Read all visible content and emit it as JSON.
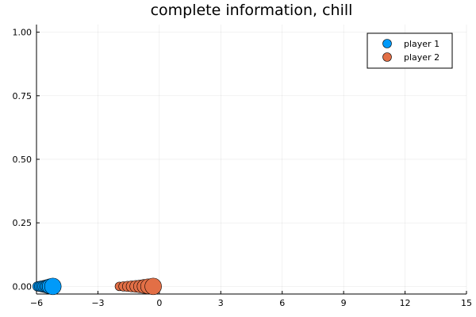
{
  "chart_data": {
    "type": "scatter",
    "title": "complete information, chill",
    "xlabel": "",
    "ylabel": "",
    "xlim": [
      -6,
      15
    ],
    "ylim": [
      -0.03,
      1.03
    ],
    "xticks": [
      -6,
      -3,
      0,
      3,
      6,
      9,
      12,
      15
    ],
    "xtick_labels": [
      "−6",
      "−3",
      "0",
      "3",
      "6",
      "9",
      "12",
      "15"
    ],
    "yticks": [
      0,
      0.25,
      0.5,
      0.75,
      1.0
    ],
    "ytick_labels": [
      "0.00",
      "0.25",
      "0.50",
      "0.75",
      "1.00"
    ],
    "grid": true,
    "legend_position": "top-right",
    "series": [
      {
        "name": "player 1",
        "color": "#009af9",
        "points": [
          {
            "x": -5.95,
            "y": 0,
            "size": 6
          },
          {
            "x": -5.85,
            "y": 0,
            "size": 6.5
          },
          {
            "x": -5.75,
            "y": 0,
            "size": 7
          },
          {
            "x": -5.65,
            "y": 0,
            "size": 7.5
          },
          {
            "x": -5.55,
            "y": 0,
            "size": 8
          },
          {
            "x": -5.45,
            "y": 0,
            "size": 8.7
          },
          {
            "x": -5.35,
            "y": 0,
            "size": 9.5
          },
          {
            "x": -5.2,
            "y": 0,
            "size": 10.5
          }
        ]
      },
      {
        "name": "player 2",
        "color": "#e26f46",
        "points": [
          {
            "x": -1.95,
            "y": 0,
            "size": 5.5
          },
          {
            "x": -1.75,
            "y": 0,
            "size": 6
          },
          {
            "x": -1.55,
            "y": 0,
            "size": 6.5
          },
          {
            "x": -1.35,
            "y": 0,
            "size": 7
          },
          {
            "x": -1.15,
            "y": 0,
            "size": 7.5
          },
          {
            "x": -0.95,
            "y": 0,
            "size": 8
          },
          {
            "x": -0.75,
            "y": 0,
            "size": 8.7
          },
          {
            "x": -0.55,
            "y": 0,
            "size": 9.5
          },
          {
            "x": -0.3,
            "y": 0,
            "size": 10.5
          }
        ]
      }
    ]
  }
}
